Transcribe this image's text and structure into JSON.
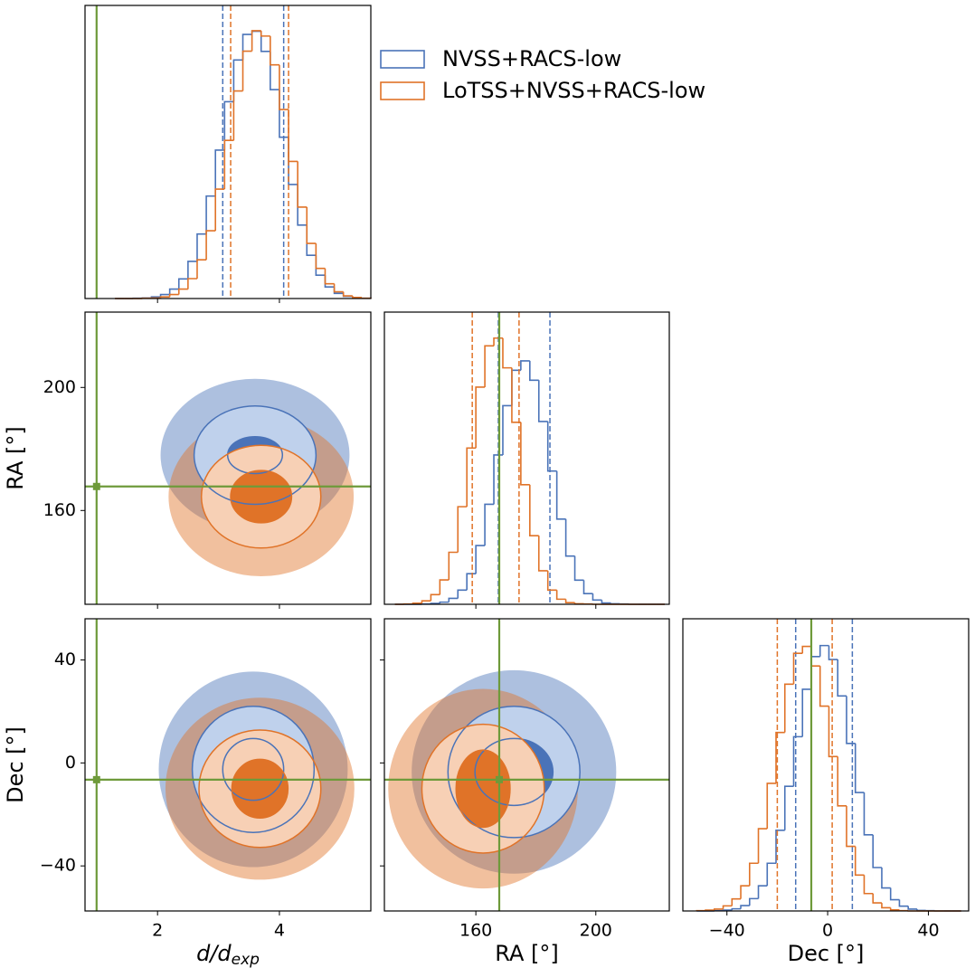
{
  "chart_data": {
    "type": "corner",
    "parameters": [
      {
        "label": "d/d",
        "label_sub": "exp",
        "lim": [
          0.81,
          5.5
        ],
        "ticks": [
          2,
          4
        ],
        "truth": 1.0,
        "bins": [
          1.3,
          1.45,
          1.6,
          1.75,
          1.9,
          2.05,
          2.2,
          2.35,
          2.5,
          2.65,
          2.8,
          2.95,
          3.1,
          3.25,
          3.4,
          3.55,
          3.7,
          3.85,
          4.0,
          4.15,
          4.3,
          4.45,
          4.6,
          4.75,
          4.9,
          5.05,
          5.2,
          5.35,
          5.5
        ]
      },
      {
        "label": "RA [°]",
        "lim": [
          129.5,
          224.5
        ],
        "ticks": [
          160,
          200
        ],
        "truth": 167.8,
        "bins": [
          133,
          136,
          139,
          142,
          145,
          148,
          151,
          154,
          157,
          160,
          163,
          166,
          169,
          172,
          175,
          178,
          181,
          184,
          187,
          190,
          193,
          196,
          199,
          202,
          205,
          208,
          211,
          214,
          217,
          220,
          223
        ]
      },
      {
        "label": "Dec [°]",
        "lim": [
          -57.5,
          56
        ],
        "ticks": [
          {
            "value": -40,
            "label": "−40"
          },
          0,
          40
        ],
        "truth": -6.5,
        "bins": [
          -52,
          -48.5,
          -45,
          -41.5,
          -38,
          -34.5,
          -31,
          -27.5,
          -24,
          -20.5,
          -17,
          -13.5,
          -10,
          -6.5,
          -3,
          0.5,
          4,
          7.5,
          11,
          14.5,
          18,
          21.5,
          25,
          28.5,
          32,
          35.5,
          39,
          42.5,
          46,
          49.5,
          53
        ]
      }
    ],
    "hist_ylim": [
      0,
      1090
    ],
    "series": [
      {
        "name": "NVSS+RACS-low",
        "color": "#4a73b8",
        "fill": "#bfd1ec",
        "counts": [
          [
            0,
            0,
            1,
            2,
            6,
            15,
            35,
            73,
            138,
            240,
            381,
            552,
            732,
            887,
            982,
            994,
            919,
            777,
            600,
            424,
            273,
            161,
            87,
            43,
            19,
            8,
            3,
            1
          ],
          [
            0,
            0,
            0,
            1,
            3,
            8,
            22,
            53,
            114,
            219,
            373,
            557,
            741,
            873,
            908,
            836,
            682,
            497,
            318,
            180,
            90,
            40,
            16,
            5,
            2,
            1,
            0,
            0,
            0,
            0
          ],
          [
            0,
            0,
            1,
            3,
            8,
            20,
            46,
            94,
            178,
            301,
            465,
            650,
            827,
            949,
            990,
            938,
            802,
            625,
            442,
            284,
            162,
            86,
            42,
            18,
            7,
            2,
            1,
            0,
            0,
            0
          ]
        ],
        "quantiles": [
          [
            3.07,
            4.07
          ],
          [
            167.5,
            184.7
          ],
          [
            -12.7,
            9.8
          ]
        ],
        "contours": [
          {
            "center": [
              3.6,
              178
            ],
            "inner": [
              0.45,
              6
            ],
            "outer": [
              1.0,
              16
            ]
          },
          {
            "center": [
              3.57,
              -2.5
            ],
            "inner": [
              0.5,
              12
            ],
            "outer": [
              1.0,
              24.5
            ]
          },
          {
            "center": [
              172.7,
              -3.5
            ],
            "inner": [
              13,
              13
            ],
            "outer": [
              22,
              25.5
            ]
          }
        ]
      },
      {
        "name": "LoTSS+NVSS+RACS-low",
        "color": "#e07328",
        "fill": "#f7d0b5",
        "counts": [
          [
            0,
            0,
            0,
            1,
            2,
            6,
            15,
            35,
            74,
            144,
            252,
            407,
            588,
            772,
            920,
            996,
            976,
            869,
            703,
            510,
            340,
            205,
            112,
            55,
            25,
            10,
            4,
            1
          ],
          [
            0,
            1,
            4,
            13,
            36,
            91,
            194,
            364,
            583,
            810,
            964,
            993,
            882,
            679,
            446,
            256,
            125,
            53,
            19,
            6,
            2,
            1,
            0,
            0,
            0,
            0,
            0,
            0,
            0,
            0
          ],
          [
            1,
            3,
            7,
            19,
            45,
            94,
            178,
            307,
            476,
            666,
            846,
            961,
            987,
            914,
            764,
            576,
            392,
            241,
            134,
            65,
            30,
            12,
            4,
            1,
            0,
            0,
            0,
            0,
            0,
            0
          ]
        ],
        "quantiles": [
          [
            3.2,
            4.15
          ],
          [
            158.8,
            174.4
          ],
          [
            -20,
            1.8
          ]
        ],
        "contours": [
          {
            "center": [
              3.7,
              164.5
            ],
            "inner": [
              0.5,
              8.5
            ],
            "outer": [
              0.98,
              16.7
            ]
          },
          {
            "center": [
              3.68,
              -10
            ],
            "inner": [
              0.46,
              11.4
            ],
            "outer": [
              1.0,
              22.8
            ]
          },
          {
            "center": [
              162.4,
              -10
            ],
            "inner": [
              9,
              15
            ],
            "outer": [
              20.4,
              25
            ]
          }
        ]
      }
    ],
    "truth_color": "#6e9a3a"
  }
}
